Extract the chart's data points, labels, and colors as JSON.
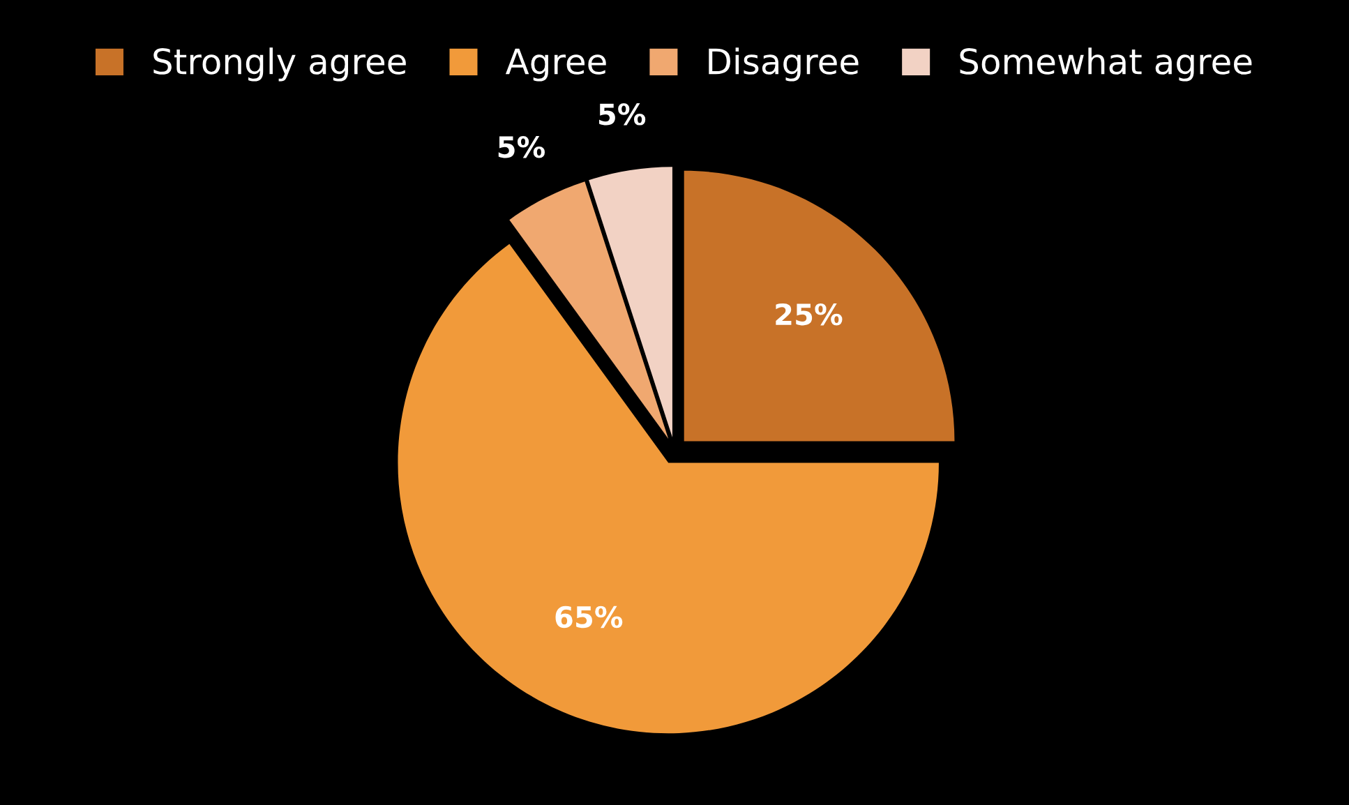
{
  "chart_data": {
    "type": "pie",
    "categories": [
      "Strongly agree",
      "Agree",
      "Disagree",
      "Somewhat agree"
    ],
    "values": [
      25,
      65,
      5,
      5
    ],
    "colors": [
      "#c87228",
      "#f19a3a",
      "#f0a870",
      "#f2d2c4"
    ],
    "value_labels": [
      "25%",
      "65%",
      "5%",
      "5%"
    ],
    "legend": "top"
  }
}
